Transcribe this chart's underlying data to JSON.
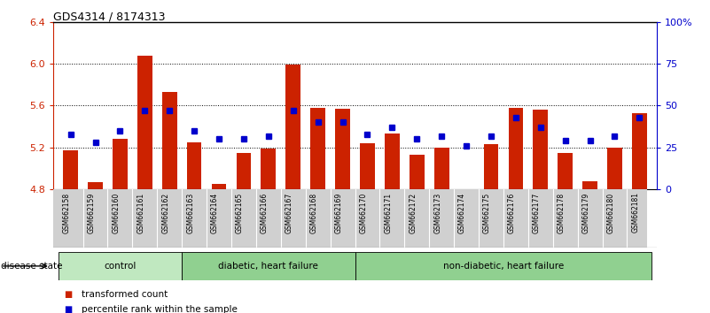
{
  "title": "GDS4314 / 8174313",
  "samples": [
    "GSM662158",
    "GSM662159",
    "GSM662160",
    "GSM662161",
    "GSM662162",
    "GSM662163",
    "GSM662164",
    "GSM662165",
    "GSM662166",
    "GSM662167",
    "GSM662168",
    "GSM662169",
    "GSM662170",
    "GSM662171",
    "GSM662172",
    "GSM662173",
    "GSM662174",
    "GSM662175",
    "GSM662176",
    "GSM662177",
    "GSM662178",
    "GSM662179",
    "GSM662180",
    "GSM662181"
  ],
  "bar_values": [
    5.17,
    4.87,
    5.28,
    6.08,
    5.73,
    5.25,
    4.85,
    5.15,
    5.19,
    5.99,
    5.58,
    5.57,
    5.24,
    5.33,
    5.13,
    5.2,
    4.8,
    5.23,
    5.58,
    5.56,
    5.15,
    4.88,
    5.2,
    5.53
  ],
  "percentile_values": [
    33,
    28,
    35,
    47,
    47,
    35,
    30,
    30,
    32,
    47,
    40,
    40,
    33,
    37,
    30,
    32,
    26,
    32,
    43,
    37,
    29,
    29,
    32,
    43
  ],
  "bar_color": "#cc2200",
  "percentile_color": "#0000cc",
  "ylim_left": [
    4.8,
    6.4
  ],
  "ylim_right": [
    0,
    100
  ],
  "yticks_left": [
    4.8,
    5.2,
    5.6,
    6.0,
    6.4
  ],
  "yticks_right": [
    0,
    25,
    50,
    75,
    100
  ],
  "ytick_labels_right": [
    "0",
    "25",
    "50",
    "75",
    "100%"
  ],
  "group_ranges": [
    {
      "start": 0,
      "end": 4,
      "label": "control",
      "color": "#c0e8c0"
    },
    {
      "start": 5,
      "end": 11,
      "label": "diabetic, heart failure",
      "color": "#90d090"
    },
    {
      "start": 12,
      "end": 23,
      "label": "non-diabetic, heart failure",
      "color": "#90d090"
    }
  ],
  "legend_items": [
    {
      "label": "transformed count",
      "color": "#cc2200"
    },
    {
      "label": "percentile rank within the sample",
      "color": "#0000cc"
    }
  ],
  "disease_state_label": "disease state",
  "xticklabel_bg": "#d0d0d0"
}
